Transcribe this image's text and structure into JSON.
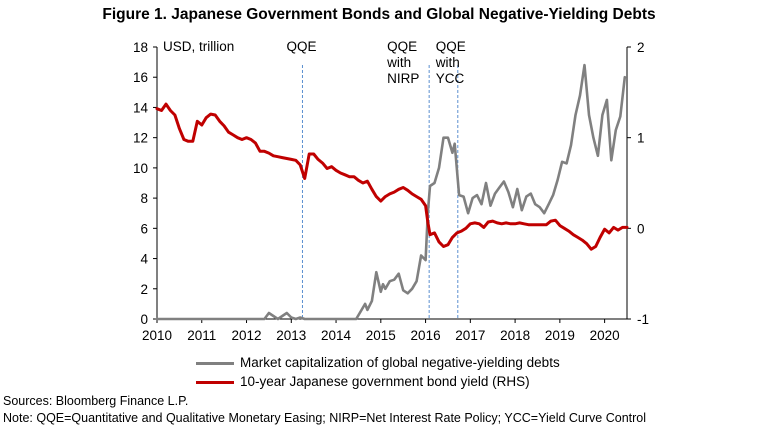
{
  "title": "Figure 1. Japanese Government Bonds and Global Negative-Yielding Debts",
  "sources": "Sources: Bloomberg Finance L.P.",
  "note": "Note: QQE=Quantitative and Qualitative Monetary Easing; NIRP=Net Interest Rate Policy; YCC=Yield Curve Control",
  "chart_data": {
    "type": "line",
    "title": "Figure 1. Japanese Government Bonds and Global Negative-Yielding Debts",
    "ylabel_left": "USD, trillion",
    "ylim_left": [
      0,
      18
    ],
    "yticks_left": [
      "0",
      "2",
      "4",
      "6",
      "8",
      "10",
      "12",
      "14",
      "16",
      "18"
    ],
    "ylim_right": [
      -1,
      2
    ],
    "yticks_right": [
      "-1",
      "0",
      "1",
      "2"
    ],
    "xlim": [
      2010,
      2020.5
    ],
    "xticks": [
      "2010",
      "2011",
      "2012",
      "2013",
      "2014",
      "2015",
      "2016",
      "2017",
      "2018",
      "2019",
      "2020"
    ],
    "grid": false,
    "events": [
      {
        "x": 2013.25,
        "lines": [
          "QQE"
        ]
      },
      {
        "x": 2016.08,
        "lines": [
          "QQE",
          "with",
          "NIRP"
        ]
      },
      {
        "x": 2016.72,
        "lines": [
          "QQE",
          "with",
          "YCC"
        ]
      }
    ],
    "series": [
      {
        "name": "Market capitalization of global negative-yielding debts",
        "axis": "left",
        "color": "#808080",
        "x": [
          2010.0,
          2012.4,
          2012.5,
          2012.6,
          2012.7,
          2012.8,
          2012.9,
          2013.0,
          2013.1,
          2013.2,
          2013.3,
          2014.45,
          2014.55,
          2014.65,
          2014.7,
          2014.8,
          2014.9,
          2015.0,
          2015.05,
          2015.1,
          2015.2,
          2015.3,
          2015.4,
          2015.5,
          2015.6,
          2015.7,
          2015.8,
          2015.9,
          2016.0,
          2016.05,
          2016.1,
          2016.2,
          2016.3,
          2016.4,
          2016.5,
          2016.6,
          2016.65,
          2016.75,
          2016.85,
          2016.95,
          2017.05,
          2017.15,
          2017.25,
          2017.35,
          2017.45,
          2017.55,
          2017.65,
          2017.75,
          2017.85,
          2017.95,
          2018.05,
          2018.15,
          2018.25,
          2018.35,
          2018.45,
          2018.55,
          2018.65,
          2018.75,
          2018.85,
          2018.95,
          2019.05,
          2019.15,
          2019.25,
          2019.35,
          2019.45,
          2019.55,
          2019.65,
          2019.75,
          2019.85,
          2019.95,
          2020.05,
          2020.15,
          2020.25,
          2020.35,
          2020.45
        ],
        "values": [
          0,
          0,
          0.4,
          0.2,
          0,
          0.2,
          0.4,
          0.1,
          0,
          0.1,
          0,
          0,
          0.5,
          1.0,
          0.6,
          1.2,
          3.1,
          1.8,
          2.3,
          2.0,
          2.5,
          2.6,
          3.0,
          1.9,
          1.7,
          2.0,
          2.5,
          4.2,
          3.9,
          7.0,
          8.8,
          9.0,
          10.0,
          12.0,
          12.0,
          11.0,
          11.6,
          8.2,
          8.1,
          7.0,
          8.0,
          8.2,
          7.6,
          9.0,
          7.5,
          8.3,
          8.7,
          9.1,
          8.4,
          7.4,
          8.6,
          7.2,
          8.1,
          8.3,
          7.6,
          7.4,
          7.0,
          7.6,
          8.2,
          9.2,
          10.4,
          10.3,
          11.5,
          13.5,
          14.8,
          16.8,
          13.5,
          12.0,
          10.8,
          13.5,
          14.5,
          10.5,
          12.5,
          13.4,
          16.0
        ]
      },
      {
        "name": "10-year Japanese government bond yield (RHS)",
        "axis": "right",
        "color": "#c00000",
        "x": [
          2010.0,
          2010.1,
          2010.2,
          2010.3,
          2010.4,
          2010.5,
          2010.6,
          2010.7,
          2010.8,
          2010.9,
          2011.0,
          2011.1,
          2011.2,
          2011.3,
          2011.4,
          2011.5,
          2011.6,
          2011.7,
          2011.8,
          2011.9,
          2012.0,
          2012.1,
          2012.2,
          2012.3,
          2012.4,
          2012.5,
          2012.6,
          2012.7,
          2012.8,
          2012.9,
          2013.0,
          2013.1,
          2013.2,
          2013.3,
          2013.4,
          2013.5,
          2013.6,
          2013.7,
          2013.8,
          2013.9,
          2014.0,
          2014.1,
          2014.2,
          2014.3,
          2014.4,
          2014.5,
          2014.6,
          2014.7,
          2014.8,
          2014.9,
          2015.0,
          2015.1,
          2015.2,
          2015.3,
          2015.4,
          2015.5,
          2015.6,
          2015.7,
          2015.8,
          2015.9,
          2016.0,
          2016.05,
          2016.1,
          2016.2,
          2016.3,
          2016.4,
          2016.5,
          2016.6,
          2016.7,
          2016.8,
          2016.9,
          2017.0,
          2017.1,
          2017.2,
          2017.3,
          2017.4,
          2017.5,
          2017.6,
          2017.7,
          2017.8,
          2017.9,
          2018.0,
          2018.1,
          2018.2,
          2018.3,
          2018.4,
          2018.5,
          2018.6,
          2018.7,
          2018.8,
          2018.9,
          2019.0,
          2019.1,
          2019.2,
          2019.3,
          2019.4,
          2019.5,
          2019.6,
          2019.7,
          2019.8,
          2019.9,
          2020.0,
          2020.1,
          2020.2,
          2020.3,
          2020.4,
          2020.5
        ],
        "values": [
          1.32,
          1.3,
          1.37,
          1.3,
          1.25,
          1.1,
          0.98,
          0.96,
          0.96,
          1.18,
          1.14,
          1.22,
          1.26,
          1.25,
          1.18,
          1.13,
          1.06,
          1.03,
          1.0,
          0.98,
          1.0,
          0.98,
          0.94,
          0.85,
          0.85,
          0.83,
          0.8,
          0.79,
          0.78,
          0.77,
          0.76,
          0.75,
          0.7,
          0.55,
          0.82,
          0.82,
          0.76,
          0.72,
          0.66,
          0.68,
          0.64,
          0.61,
          0.59,
          0.57,
          0.57,
          0.53,
          0.5,
          0.52,
          0.43,
          0.35,
          0.3,
          0.35,
          0.38,
          0.4,
          0.43,
          0.45,
          0.42,
          0.38,
          0.35,
          0.32,
          0.25,
          0.07,
          -0.07,
          -0.05,
          -0.15,
          -0.2,
          -0.18,
          -0.1,
          -0.05,
          -0.03,
          0.0,
          0.05,
          0.06,
          0.05,
          0.01,
          0.07,
          0.08,
          0.06,
          0.05,
          0.06,
          0.05,
          0.05,
          0.06,
          0.05,
          0.04,
          0.04,
          0.04,
          0.04,
          0.04,
          0.08,
          0.09,
          0.03,
          0.0,
          -0.03,
          -0.07,
          -0.1,
          -0.13,
          -0.17,
          -0.23,
          -0.2,
          -0.1,
          -0.01,
          -0.05,
          0.01,
          -0.02,
          0.01,
          0.01
        ]
      }
    ]
  }
}
